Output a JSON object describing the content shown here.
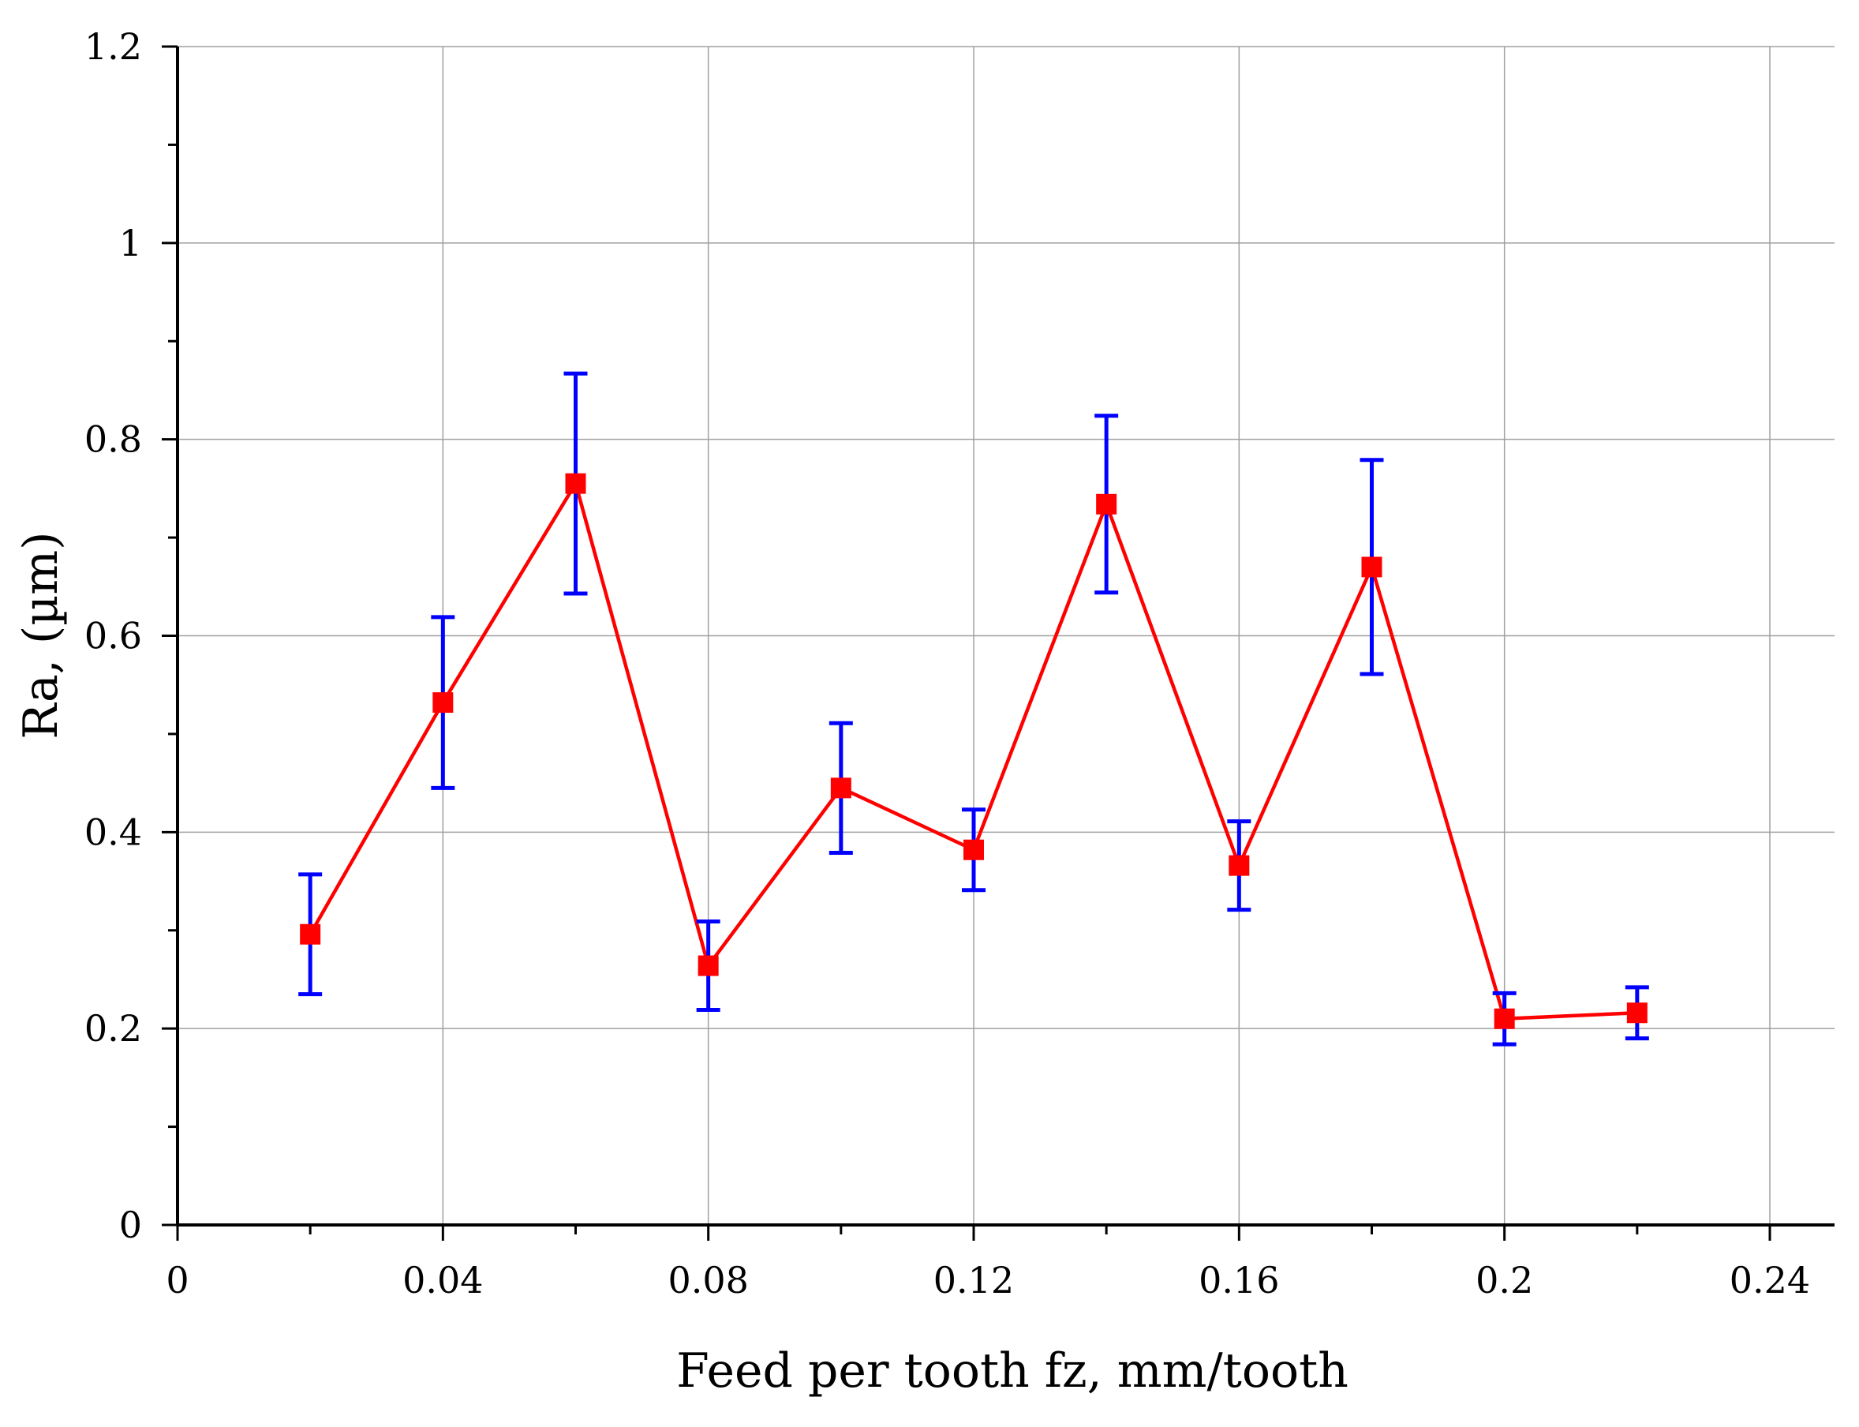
{
  "chart_data": {
    "type": "line",
    "title": "",
    "xlabel": "Feed per tooth fz, mm/tooth",
    "ylabel": "Ra, (µm)",
    "xlim": [
      0,
      0.25
    ],
    "ylim": [
      0,
      1.2
    ],
    "grid": true,
    "x_ticks": [
      0,
      0.04,
      0.08,
      0.12,
      0.16,
      0.2,
      0.24
    ],
    "x_tick_labels": [
      "0",
      "0.04",
      "0.08",
      "0.12",
      "0.16",
      "0.2",
      "0.24"
    ],
    "x_minor_ticks": [
      0.02,
      0.06,
      0.1,
      0.14,
      0.18,
      0.22
    ],
    "y_ticks": [
      0,
      0.2,
      0.4,
      0.6,
      0.8,
      1.0,
      1.2
    ],
    "y_tick_labels": [
      "0",
      "0.2",
      "0.4",
      "0.6",
      "0.8",
      "1",
      "1.2"
    ],
    "y_minor_ticks": [
      0.1,
      0.3,
      0.5,
      0.7,
      0.9,
      1.1
    ],
    "series": [
      {
        "name": "Ra",
        "line_color": "#ff0000",
        "marker_color": "#ff0000",
        "error_color": "#0000ff",
        "marker": "square",
        "x": [
          0.02,
          0.04,
          0.06,
          0.08,
          0.1,
          0.12,
          0.14,
          0.16,
          0.18,
          0.2,
          0.22
        ],
        "y": [
          0.296,
          0.532,
          0.755,
          0.264,
          0.445,
          0.382,
          0.734,
          0.366,
          0.67,
          0.21,
          0.216
        ],
        "y_err_low": [
          0.235,
          0.445,
          0.643,
          0.219,
          0.379,
          0.341,
          0.644,
          0.321,
          0.561,
          0.184,
          0.19
        ],
        "y_err_high": [
          0.357,
          0.619,
          0.867,
          0.309,
          0.511,
          0.423,
          0.824,
          0.411,
          0.779,
          0.236,
          0.242
        ]
      }
    ]
  }
}
